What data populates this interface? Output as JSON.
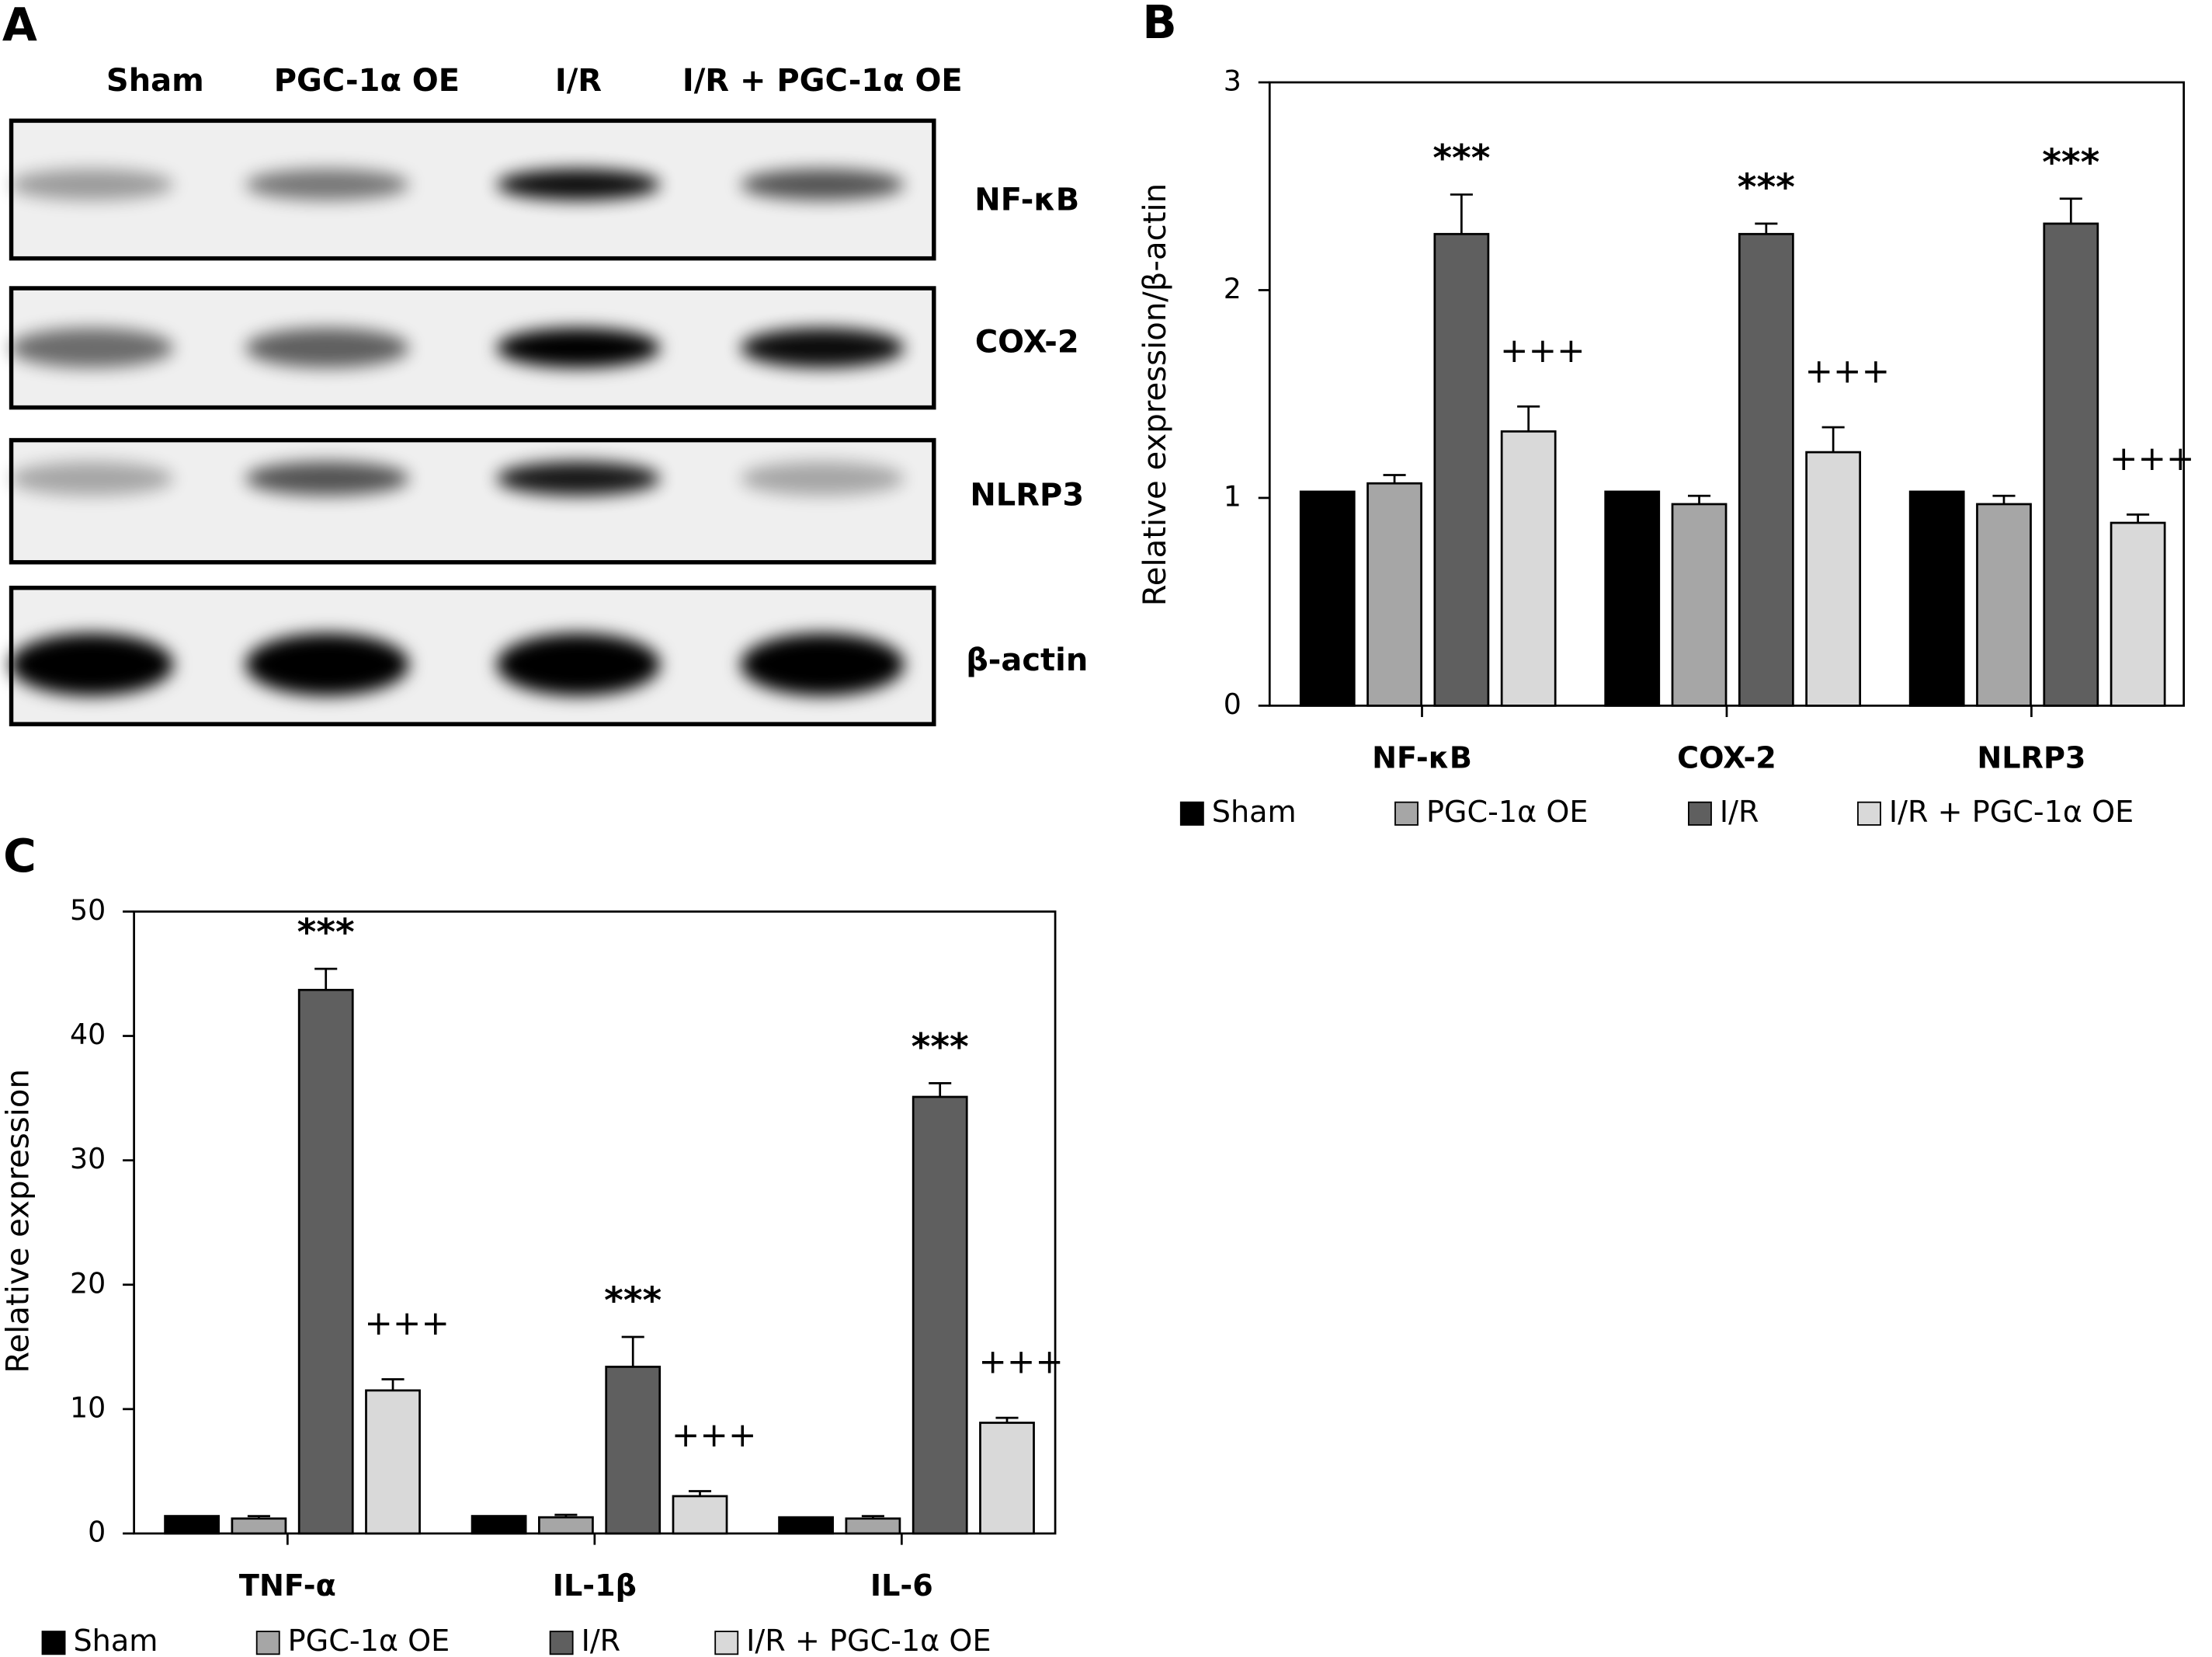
{
  "blot": {
    "panel_label": "A",
    "lanes": [
      "Sham",
      "PGC-1α OE",
      "I/R",
      "I/R + PGC-1α OE"
    ],
    "proteins": [
      "NF-κB",
      "COX-2",
      "NLRP3",
      "β-actin"
    ]
  },
  "chart_data": [
    {
      "type": "bar",
      "panel_label": "B",
      "ylabel": "Relative expression/β-actin",
      "categories": [
        "NF-κB",
        "COX-2",
        "NLRP3"
      ],
      "ylim": [
        0,
        3
      ],
      "yticks": [
        0,
        1,
        2,
        3
      ],
      "series": [
        {
          "name": "Sham",
          "color": "#000000",
          "values": [
            1.03,
            1.03,
            1.03
          ]
        },
        {
          "name": "PGC-1α OE",
          "color": "#a6a6a6",
          "values": [
            1.07,
            0.97,
            0.97
          ],
          "errors": [
            0.04,
            0.04,
            0.04
          ]
        },
        {
          "name": "I/R",
          "color": "#5f5f5f",
          "values": [
            2.27,
            2.27,
            2.32
          ],
          "errors": [
            0.19,
            0.05,
            0.12
          ],
          "annotations": [
            "***",
            "***",
            "***"
          ]
        },
        {
          "name": "I/R + PGC-1α OE",
          "color": "#d9d9d9",
          "values": [
            1.32,
            1.22,
            0.88
          ],
          "errors": [
            0.12,
            0.12,
            0.04
          ],
          "annotations": [
            "+++",
            "+++",
            "+++"
          ]
        }
      ]
    },
    {
      "type": "bar",
      "panel_label": "C",
      "ylabel": "Relative expression",
      "categories": [
        "TNF-α",
        "IL-1β",
        "IL-6"
      ],
      "ylim": [
        0,
        50
      ],
      "yticks": [
        0,
        10,
        20,
        30,
        40,
        50
      ],
      "series": [
        {
          "name": "Sham",
          "color": "#000000",
          "values": [
            1.4,
            1.4,
            1.3
          ]
        },
        {
          "name": "PGC-1α OE",
          "color": "#a6a6a6",
          "values": [
            1.2,
            1.3,
            1.2
          ],
          "errors": [
            0.2,
            0.2,
            0.2
          ]
        },
        {
          "name": "I/R",
          "color": "#5f5f5f",
          "values": [
            43.7,
            13.4,
            35.1
          ],
          "errors": [
            1.7,
            2.4,
            1.1
          ],
          "annotations": [
            "***",
            "***",
            "***"
          ]
        },
        {
          "name": "I/R + PGC-1α OE",
          "color": "#d9d9d9",
          "values": [
            11.5,
            3.0,
            8.9
          ],
          "errors": [
            0.9,
            0.4,
            0.4
          ],
          "annotations": [
            "+++",
            "+++",
            "+++"
          ]
        }
      ]
    }
  ]
}
